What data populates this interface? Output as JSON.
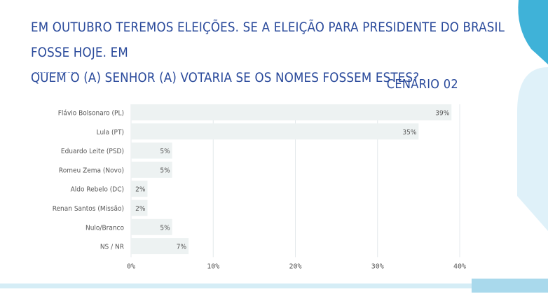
{
  "question": {
    "line1": "EM OUTUBRO TEREMOS ELEIÇÕES. SE A ELEIÇÃO PARA PRESIDENTE DO BRASIL FOSSE HOJE. EM",
    "line2": "QUEM O (A) SENHOR (A) VOTARIA SE OS NOMES FOSSEM ESTES?"
  },
  "scenario_label": "CENÁRIO 02",
  "colors": {
    "title": "#2a4a9b",
    "bar": "#edf2f2",
    "grid": "#e4e9ec",
    "label": "#555555",
    "accent_dark": "#3fb2d8",
    "accent_light": "#dff1f9"
  },
  "chart_data": {
    "type": "bar",
    "orientation": "horizontal",
    "categories": [
      "Flávio Bolsonaro (PL)",
      "Lula (PT)",
      "Eduardo Leite (PSD)",
      "Romeu Zema (Novo)",
      "Aldo Rebelo (DC)",
      "Renan Santos (Missão)",
      "Nulo/Branco",
      "NS / NR"
    ],
    "values": [
      39,
      35,
      5,
      5,
      2,
      2,
      5,
      7
    ],
    "data_labels": [
      "39%",
      "35%",
      "5%",
      "5%",
      "2%",
      "2%",
      "5%",
      "7%"
    ],
    "xlim": [
      0,
      40
    ],
    "xticks": [
      0,
      10,
      20,
      30,
      40
    ],
    "xtick_labels": [
      "0%",
      "10%",
      "20%",
      "30%",
      "40%"
    ],
    "grid": true
  }
}
